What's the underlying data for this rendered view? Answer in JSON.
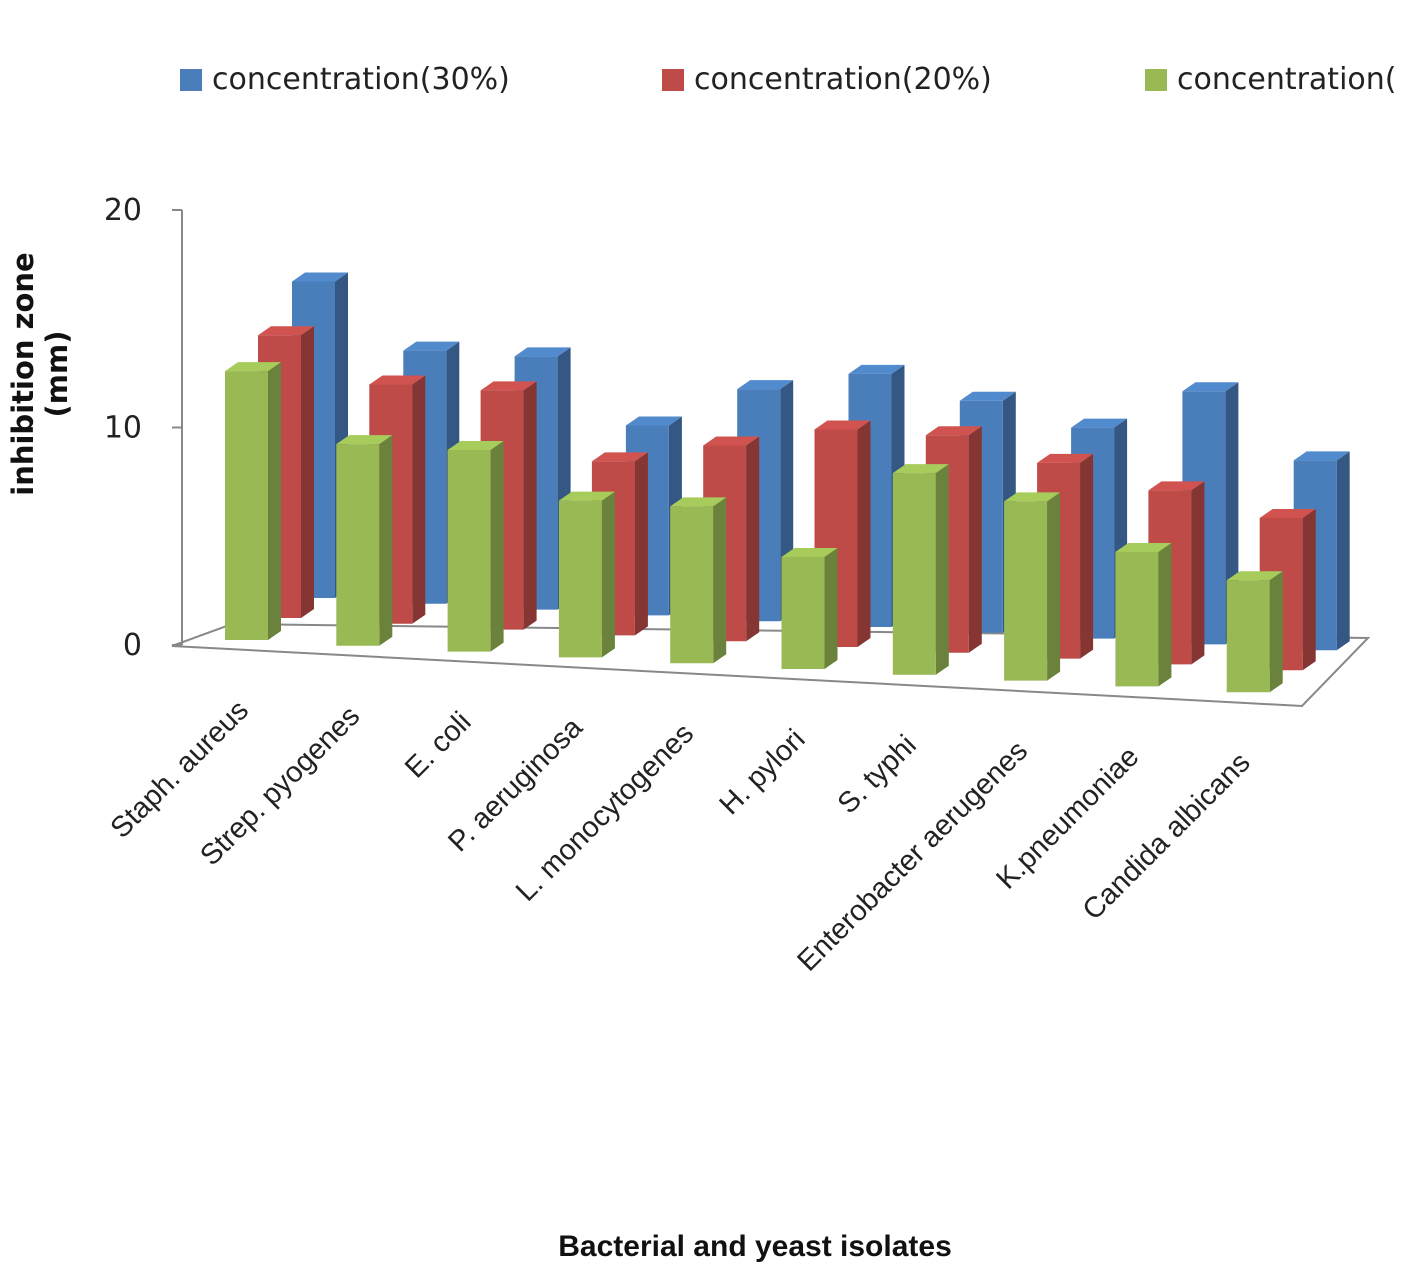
{
  "chart_data": {
    "type": "bar",
    "variant": "3d-clustered",
    "title": "",
    "xlabel": "Bacterial and yeast isolates",
    "ylabel": "inhibition zone (mm)",
    "ylim": [
      0,
      20
    ],
    "yticks": [
      "0",
      "10",
      "20"
    ],
    "categories": [
      "Staph. aureus",
      "Strep. pyogenes",
      "E. coli",
      "P. aeruginosa",
      "L. monocytogenes",
      "H. pylori",
      "S. typhi",
      "Enterobacter aerugenes",
      "K.pneumoniae",
      "Candida albicans"
    ],
    "series": [
      {
        "name": "concentration(30%)",
        "color": "#4a7ebb",
        "values": [
          15,
          12,
          12,
          9,
          11,
          12,
          11,
          10,
          12,
          9
        ]
      },
      {
        "name": "concentration(20%)",
        "color": "#be4b48",
        "values": [
          13,
          11,
          11,
          8,
          9,
          10,
          10,
          9,
          8,
          7
        ]
      },
      {
        "name": "concentration(",
        "color": "#98b954",
        "values": [
          12,
          9,
          9,
          7,
          7,
          5,
          9,
          8,
          6,
          5
        ]
      }
    ],
    "legend": "top"
  }
}
